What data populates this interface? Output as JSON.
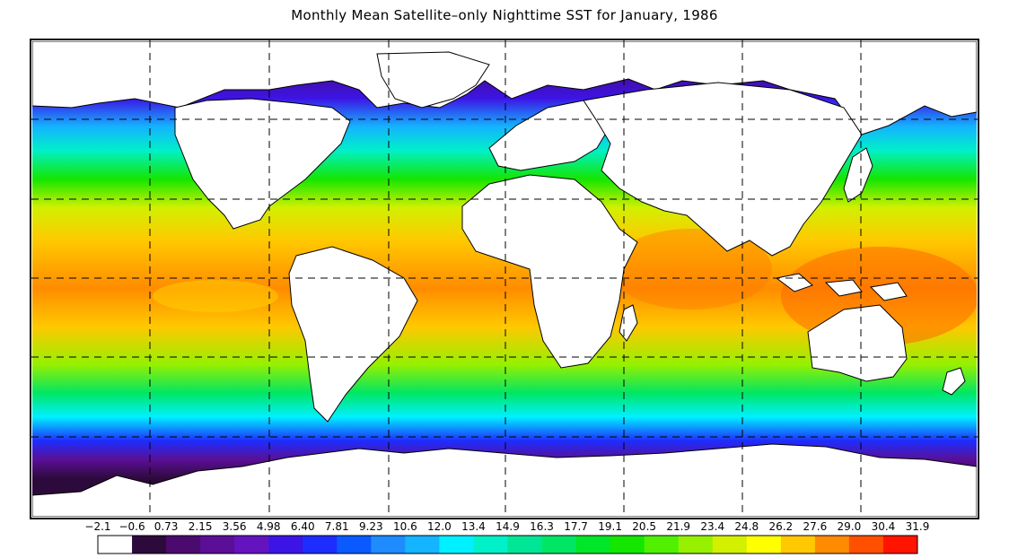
{
  "title": "Monthly Mean Satellite–only Nighttime SST for January, 1986",
  "colorbar": {
    "labels": [
      "−2.1",
      "−0.6",
      "0.73",
      "2.15",
      "3.56",
      "4.98",
      "6.40",
      "7.81",
      "9.23",
      "10.6",
      "12.0",
      "13.4",
      "14.9",
      "16.3",
      "17.7",
      "19.1",
      "20.5",
      "21.9",
      "23.4",
      "24.8",
      "26.2",
      "27.6",
      "29.0",
      "30.4",
      "31.9"
    ],
    "colors": [
      "#ffffff",
      "#2d0a3c",
      "#4b0a6e",
      "#5a0f96",
      "#6414be",
      "#3c14e6",
      "#1e2dff",
      "#0a5aff",
      "#1e8cff",
      "#14b4ff",
      "#00f0ff",
      "#00f0c8",
      "#00e696",
      "#00e664",
      "#00e628",
      "#14e600",
      "#50f000",
      "#96f000",
      "#d2f000",
      "#ffff00",
      "#ffc800",
      "#ff8c00",
      "#ff5000",
      "#ff1400"
    ]
  },
  "map": {
    "land_color": "#ffffff",
    "outline_color": "#000000",
    "grid_style": "dashed",
    "value_scale": "Sea surface temperature (°C) by latitude"
  }
}
